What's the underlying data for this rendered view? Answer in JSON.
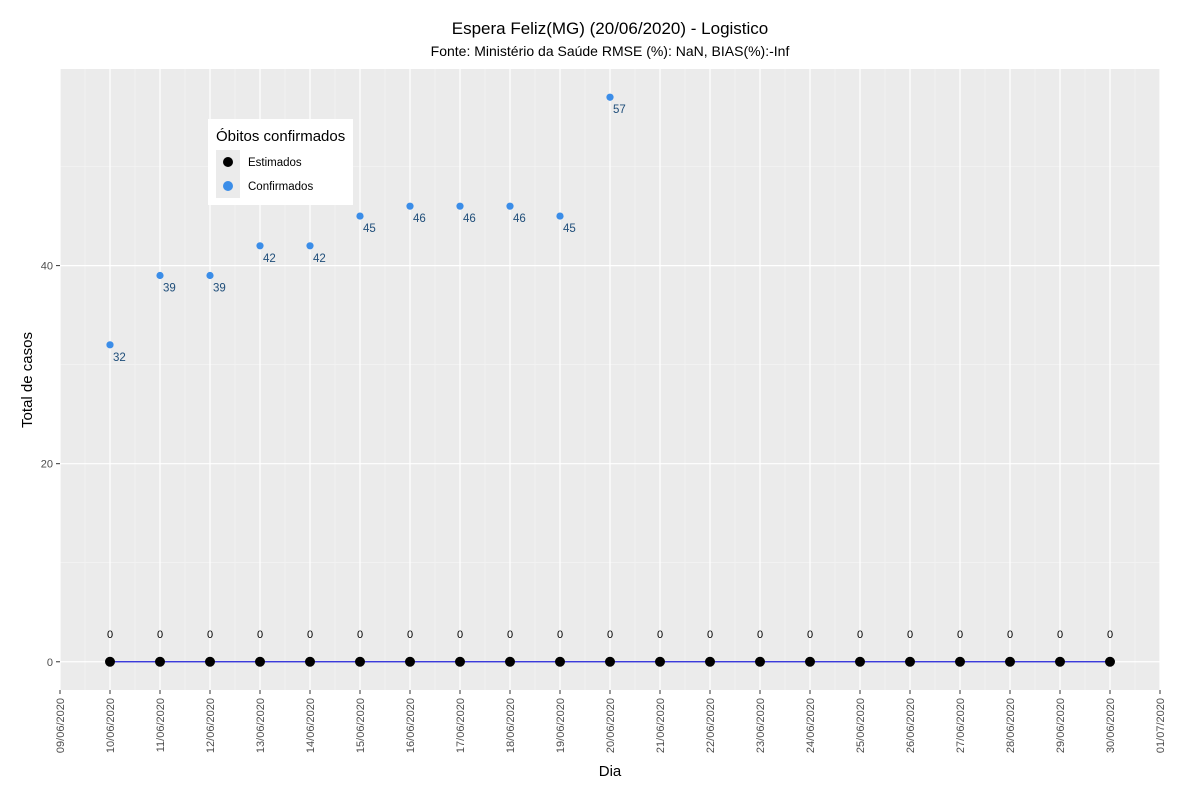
{
  "chart_data": {
    "type": "scatter",
    "title": "Espera Feliz(MG) (20/06/2020) - Logistico",
    "subtitle": "Fonte: Ministério da Saúde RMSE (%): NaN, BIAS(%):-Inf",
    "xlabel": "Dia",
    "ylabel": "Total de casos",
    "x_ticks": [
      "09/06/2020",
      "10/06/2020",
      "11/06/2020",
      "12/06/2020",
      "13/06/2020",
      "14/06/2020",
      "15/06/2020",
      "16/06/2020",
      "17/06/2020",
      "18/06/2020",
      "19/06/2020",
      "20/06/2020",
      "21/06/2020",
      "22/06/2020",
      "23/06/2020",
      "24/06/2020",
      "25/06/2020",
      "26/06/2020",
      "27/06/2020",
      "28/06/2020",
      "29/06/2020",
      "30/06/2020",
      "01/07/2020"
    ],
    "xlim": [
      "09/06/2020",
      "01/07/2020"
    ],
    "y_ticks": [
      0,
      20,
      40
    ],
    "ylim": [
      -2.85,
      59.85
    ],
    "grid": true,
    "legend": {
      "title": "Óbitos confirmados",
      "position": "top-left",
      "entries": [
        {
          "label": "Estimados",
          "color": "#000000"
        },
        {
          "label": "Confirmados",
          "color": "#3b8de8"
        }
      ]
    },
    "series": [
      {
        "name": "Estimados",
        "color": "#000000",
        "line_color": "#1f1fd6",
        "x": [
          "10/06/2020",
          "11/06/2020",
          "12/06/2020",
          "13/06/2020",
          "14/06/2020",
          "15/06/2020",
          "16/06/2020",
          "17/06/2020",
          "18/06/2020",
          "19/06/2020",
          "20/06/2020",
          "21/06/2020",
          "22/06/2020",
          "23/06/2020",
          "24/06/2020",
          "25/06/2020",
          "26/06/2020",
          "27/06/2020",
          "28/06/2020",
          "29/06/2020",
          "30/06/2020"
        ],
        "values": [
          0,
          0,
          0,
          0,
          0,
          0,
          0,
          0,
          0,
          0,
          0,
          0,
          0,
          0,
          0,
          0,
          0,
          0,
          0,
          0,
          0
        ]
      },
      {
        "name": "Confirmados",
        "color": "#3b8de8",
        "label_color": "#1f4e7a",
        "x": [
          "10/06/2020",
          "11/06/2020",
          "12/06/2020",
          "13/06/2020",
          "14/06/2020",
          "15/06/2020",
          "16/06/2020",
          "17/06/2020",
          "18/06/2020",
          "19/06/2020",
          "20/06/2020"
        ],
        "values": [
          32,
          39,
          39,
          42,
          42,
          45,
          46,
          46,
          46,
          45,
          57
        ]
      }
    ]
  }
}
